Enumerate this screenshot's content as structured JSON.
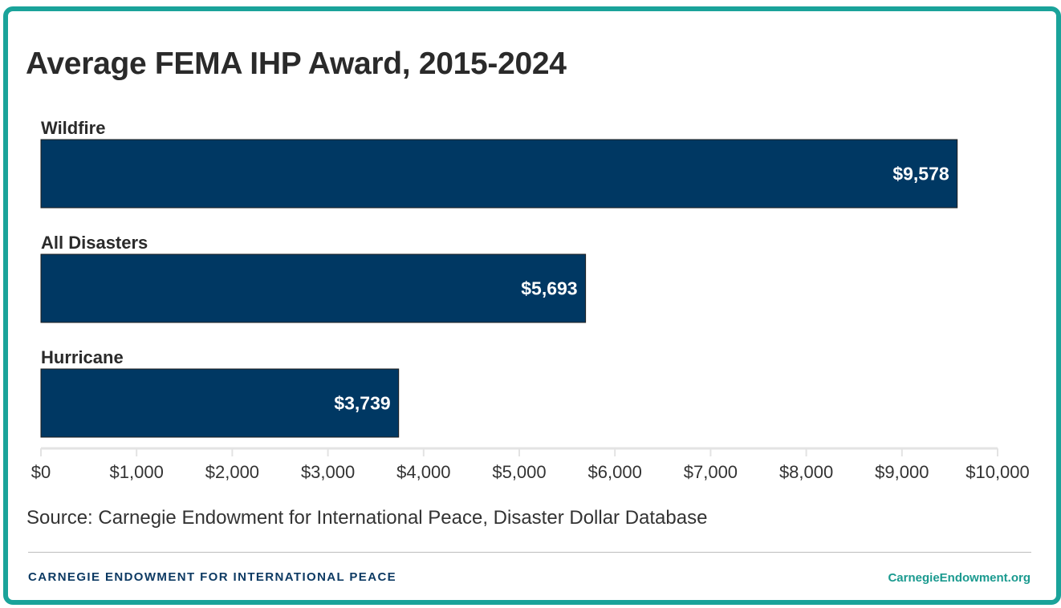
{
  "chart_data": {
    "type": "bar",
    "orientation": "horizontal",
    "title": "Average FEMA IHP Award, 2015-2024",
    "categories": [
      "Wildfire",
      "All Disasters",
      "Hurricane"
    ],
    "values": [
      9578,
      5693,
      3739
    ],
    "value_labels": [
      "$9,578",
      "$5,693",
      "$3,739"
    ],
    "xlim": [
      0,
      10000
    ],
    "x_ticks": [
      0,
      1000,
      2000,
      3000,
      4000,
      5000,
      6000,
      7000,
      8000,
      9000,
      10000
    ],
    "x_tick_labels": [
      "$0",
      "$1,000",
      "$2,000",
      "$3,000",
      "$4,000",
      "$5,000",
      "$6,000",
      "$7,000",
      "$8,000",
      "$9,000",
      "$10,000"
    ],
    "xlabel": "",
    "ylabel": "",
    "grid": false,
    "bar_color": "#003863"
  },
  "source": "Source: Carnegie Endowment for International Peace, Disaster Dollar Database",
  "footer": {
    "org_name": "CARNEGIE ENDOWMENT FOR INTERNATIONAL PEACE",
    "website": "CarnegieEndowment.org"
  },
  "colors": {
    "frame": "#1aa39a",
    "bar": "#003863",
    "footer_left": "#0d3a63",
    "footer_right": "#1a9a8f"
  }
}
